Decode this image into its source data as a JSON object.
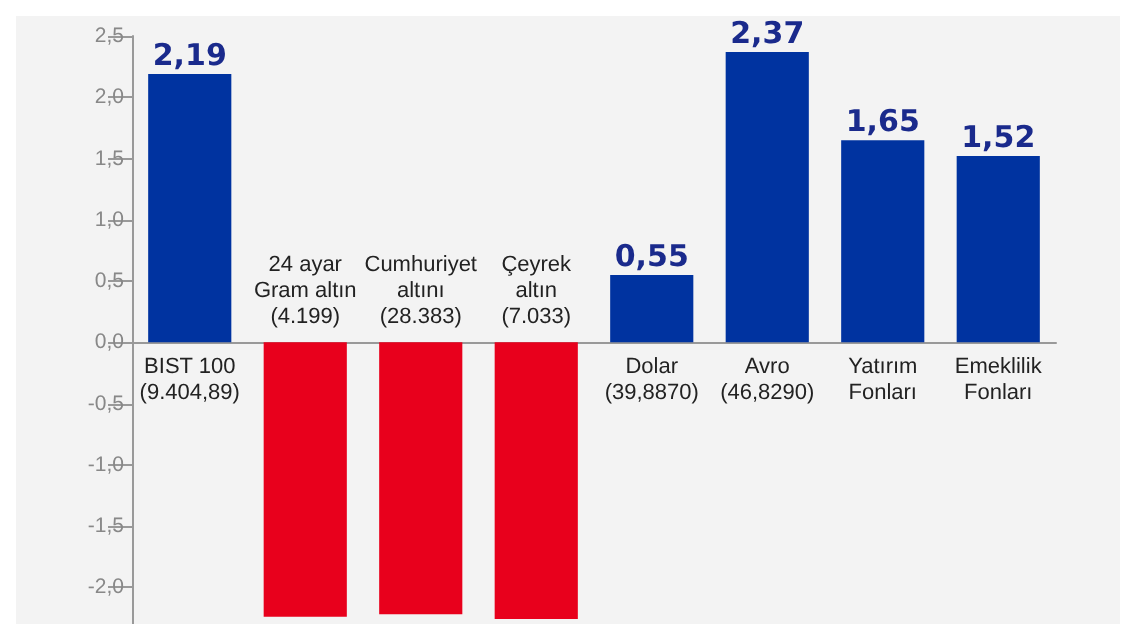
{
  "chart_data": {
    "type": "bar",
    "categories": [
      "BIST 100\n(9.404,89)",
      "24 ayar\nGram altın\n(4.199)",
      "Cumhuriyet\naltını\n(28.383)",
      "Çeyrek\naltın\n(7.033)",
      "Dolar\n(39,8870)",
      "Avro\n(46,8290)",
      "Yatırım\nFonları",
      "Emeklilik\nFonları"
    ],
    "values": [
      2.19,
      -2.24,
      -2.22,
      -2.26,
      0.55,
      2.37,
      1.65,
      1.52
    ],
    "colors": [
      "#0033a0",
      "#e8001c",
      "#e8001c",
      "#e8001c",
      "#0033a0",
      "#0033a0",
      "#0033a0",
      "#0033a0"
    ],
    "value_labels": [
      "2,19",
      null,
      null,
      null,
      "0,55",
      "2,37",
      "1,65",
      "1,52"
    ],
    "ylim": [
      -2.3,
      2.5
    ],
    "yticks": [
      {
        "value": -2,
        "label": "-2,0"
      },
      {
        "value": -1.5,
        "label": "-1,5"
      },
      {
        "value": -1,
        "label": "-1,0"
      },
      {
        "value": -0.5,
        "label": "-0,5"
      },
      {
        "value": 0,
        "label": "0,0"
      },
      {
        "value": 0.5,
        "label": "0,5"
      },
      {
        "value": 1,
        "label": "1,0"
      },
      {
        "value": 1.5,
        "label": "1,5"
      },
      {
        "value": 2,
        "label": "2,0"
      },
      {
        "value": 2.5,
        "label": "2,5"
      }
    ],
    "grid": false
  }
}
